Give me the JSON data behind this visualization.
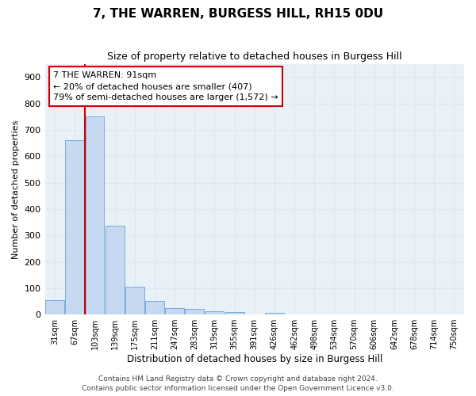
{
  "title": "7, THE WARREN, BURGESS HILL, RH15 0DU",
  "subtitle": "Size of property relative to detached houses in Burgess Hill",
  "xlabel": "Distribution of detached houses by size in Burgess Hill",
  "ylabel": "Number of detached properties",
  "bar_labels": [
    "31sqm",
    "67sqm",
    "103sqm",
    "139sqm",
    "175sqm",
    "211sqm",
    "247sqm",
    "283sqm",
    "319sqm",
    "355sqm",
    "391sqm",
    "426sqm",
    "462sqm",
    "498sqm",
    "534sqm",
    "570sqm",
    "606sqm",
    "642sqm",
    "678sqm",
    "714sqm",
    "750sqm"
  ],
  "bar_values": [
    55,
    660,
    750,
    338,
    107,
    52,
    25,
    22,
    13,
    9,
    0,
    8,
    0,
    0,
    0,
    0,
    0,
    0,
    0,
    0,
    0
  ],
  "bar_color": "#c6d9f0",
  "bar_edge_color": "#7aabdb",
  "ylim": [
    0,
    950
  ],
  "yticks": [
    0,
    100,
    200,
    300,
    400,
    500,
    600,
    700,
    800,
    900
  ],
  "annotation_text": "7 THE WARREN: 91sqm\n← 20% of detached houses are smaller (407)\n79% of semi-detached houses are larger (1,572) →",
  "annotation_box_color": "#ffffff",
  "annotation_box_edge": "#cc0000",
  "red_line_color": "#cc0000",
  "red_line_bar_index": 1,
  "grid_color": "#dde8f0",
  "bg_color": "#e8f0f8",
  "footer_line1": "Contains HM Land Registry data © Crown copyright and database right 2024.",
  "footer_line2": "Contains public sector information licensed under the Open Government Licence v3.0."
}
